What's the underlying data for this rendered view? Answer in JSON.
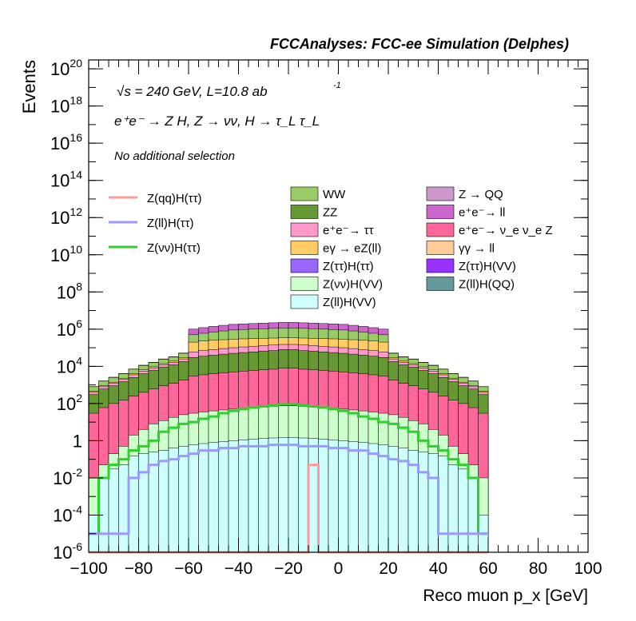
{
  "header": {
    "title": "FCCAnalyses: FCC-ee Simulation (Delphes)"
  },
  "annotations": {
    "energy": "√s = 240 GeV, L=10.8 ab",
    "energy_exponent": "-1",
    "process": "e⁺e⁻ → Z H, Z → νν, H → τ_L τ_L",
    "selection": "No additional selection"
  },
  "chart_data": {
    "type": "histogram",
    "title": "FCCAnalyses: FCC-ee Simulation (Delphes)",
    "xlabel": "Reco muon p_x [GeV]",
    "ylabel": "Events",
    "xlim": [
      -100,
      100
    ],
    "ylim": [
      1e-06,
      3e+20
    ],
    "yscale": "log",
    "bin_width": 4,
    "x_ticks": [
      "−100",
      "−80",
      "−60",
      "−40",
      "−20",
      "0",
      "20",
      "40",
      "60",
      "80",
      "100"
    ],
    "y_ticks": [
      {
        "base": "10",
        "exp": "20",
        "value": 1e+20
      },
      {
        "base": "10",
        "exp": "18",
        "value": 1e+18
      },
      {
        "base": "10",
        "exp": "16",
        "value": 1e+16
      },
      {
        "base": "10",
        "exp": "14",
        "value": 100000000000000.0
      },
      {
        "base": "10",
        "exp": "12",
        "value": 1000000000000.0
      },
      {
        "base": "10",
        "exp": "10",
        "value": 10000000000.0
      },
      {
        "base": "10",
        "exp": "8",
        "value": 100000000.0
      },
      {
        "base": "10",
        "exp": "6",
        "value": 1000000.0
      },
      {
        "base": "10",
        "exp": "4",
        "value": 10000.0
      },
      {
        "base": "10",
        "exp": "2",
        "value": 100.0
      },
      {
        "base": "1",
        "exp": "",
        "value": 1
      },
      {
        "base": "10",
        "exp": "-2",
        "value": 0.01
      },
      {
        "base": "10",
        "exp": "-4",
        "value": 0.0001
      },
      {
        "base": "10",
        "exp": "-6",
        "value": 1e-06
      }
    ],
    "stack_totals": [
      {
        "name": "Z(ll)H(VV)",
        "color": "#ccfffe",
        "values": [
          0.0001,
          0.01,
          0.03,
          0.05,
          0.15,
          0.2,
          0.25,
          0.3,
          0.4,
          0.5,
          0.6,
          0.7,
          0.8,
          0.9,
          1.0,
          1.1,
          1.2,
          1.3,
          1.4,
          1.5,
          1.5,
          1.4,
          1.3,
          1.2,
          1.1,
          1.0,
          0.9,
          0.8,
          0.7,
          0.6,
          0.5,
          0.4,
          0.3,
          0.25,
          0.2,
          0.15,
          0.05,
          0.03,
          0.01,
          0.0001
        ]
      },
      {
        "name": "Z(νν)H(VV)",
        "color": "#ccffcc",
        "values": [
          0.01,
          0.05,
          0.2,
          0.5,
          2,
          4,
          8,
          12,
          18,
          25,
          30,
          35,
          40,
          45,
          50,
          55,
          60,
          65,
          70,
          75,
          75,
          70,
          65,
          60,
          55,
          50,
          45,
          40,
          35,
          30,
          25,
          18,
          12,
          8,
          4,
          2,
          0.5,
          0.2,
          0.05,
          0.01
        ]
      },
      {
        "name": "e⁺e⁻ → ν_e ν_e Z",
        "color": "#ff6699",
        "values": [
          30,
          60,
          100,
          150,
          250,
          400,
          600,
          900,
          1200,
          1800,
          3000,
          3500,
          4000,
          4500,
          5000,
          5500,
          6000,
          6500,
          7000,
          8000,
          8000,
          7000,
          6500,
          6000,
          5500,
          5000,
          4500,
          4000,
          3500,
          3000,
          1800,
          1200,
          900,
          600,
          400,
          250,
          150,
          100,
          60,
          30
        ]
      },
      {
        "name": "ZZ",
        "color": "#669933",
        "values": [
          300,
          600,
          900,
          1500,
          2500,
          4000,
          6000,
          9000,
          12000,
          18000,
          30000,
          35000,
          40000,
          45000,
          50000,
          55000,
          60000,
          65000,
          70000,
          80000,
          80000,
          70000,
          65000,
          60000,
          55000,
          50000,
          45000,
          40000,
          35000,
          30000,
          18000,
          12000,
          9000,
          6000,
          4000,
          2500,
          1500,
          900,
          600,
          300
        ]
      },
      {
        "name": "e⁺e⁻ → ττ",
        "color": "#ff99cc",
        "values": [
          400,
          800,
          1200,
          2000,
          3500,
          5500,
          8000,
          12000,
          16000,
          25000,
          60000,
          70000,
          80000,
          90000,
          100000,
          110000,
          120000,
          130000,
          140000,
          150000,
          150000,
          140000,
          130000,
          120000,
          110000,
          100000,
          90000,
          80000,
          70000,
          60000,
          25000,
          16000,
          12000,
          8000,
          5500,
          3500,
          2000,
          1200,
          800,
          400
        ]
      },
      {
        "name": "eγ → eZ(ll)",
        "color": "#ffcc66",
        "values": [
          450,
          900,
          1400,
          2300,
          4000,
          6500,
          9500,
          14000,
          19000,
          30000,
          200000,
          230000,
          250000,
          270000,
          290000,
          300000,
          310000,
          320000,
          330000,
          340000,
          340000,
          330000,
          320000,
          310000,
          300000,
          290000,
          270000,
          250000,
          230000,
          200000,
          30000,
          19000,
          14000,
          9500,
          6500,
          4000,
          2300,
          1400,
          900,
          450
        ]
      },
      {
        "name": "WW",
        "color": "#99cc66",
        "values": [
          800,
          1600,
          2500,
          4000,
          7000,
          11000,
          16000,
          24000,
          32000,
          50000,
          500000,
          600000,
          700000,
          800000,
          900000,
          950000,
          1000000,
          1050000,
          1100000,
          1150000,
          1150000,
          1100000,
          1050000,
          1000000,
          950000,
          900000,
          800000,
          700000,
          600000,
          500000,
          50000,
          32000,
          24000,
          16000,
          11000,
          7000,
          4000,
          2500,
          1600,
          800
        ]
      },
      {
        "name": "e⁺e⁻ → ll",
        "color": "#cc66cc",
        "values": [
          820,
          1650,
          2600,
          4100,
          7200,
          11500,
          16500,
          25000,
          33000,
          52000,
          1000000,
          1200000,
          1400000,
          1600000,
          1800000,
          1900000,
          2000000,
          2100000,
          2200000,
          2300000,
          2300000,
          2200000,
          2100000,
          2000000,
          1900000,
          1800000,
          1600000,
          1400000,
          1200000,
          1000000,
          52000,
          33000,
          25000,
          16500,
          11500,
          7200,
          4100,
          2600,
          1650,
          820
        ]
      }
    ],
    "overlays": [
      {
        "name": "Z(νν)H(ττ)",
        "color": "#33cc33",
        "values": [
          1e-05,
          0.01,
          0.05,
          0.1,
          0.3,
          0.5,
          1,
          3,
          5,
          8,
          10,
          15,
          20,
          30,
          40,
          50,
          60,
          70,
          80,
          90,
          90,
          80,
          70,
          60,
          50,
          40,
          30,
          20,
          15,
          10,
          8,
          5,
          3,
          1,
          0.5,
          0.3,
          0.1,
          0.05,
          0.01,
          1e-05
        ]
      },
      {
        "name": "Z(ll)H(ττ)",
        "color": "#9999ff",
        "values": [
          1e-05,
          1e-05,
          1e-05,
          1e-05,
          0.01,
          0.02,
          0.05,
          0.08,
          0.1,
          0.15,
          0.2,
          0.3,
          0.3,
          0.4,
          0.4,
          0.5,
          0.5,
          0.5,
          0.6,
          0.6,
          0.6,
          0.5,
          0.5,
          0.5,
          0.4,
          0.4,
          0.3,
          0.3,
          0.2,
          0.15,
          0.1,
          0.08,
          0.05,
          0.02,
          0.01,
          1e-05,
          1e-05,
          1e-05,
          1e-05,
          1e-05
        ]
      },
      {
        "name": "Z(qq)H(ττ)",
        "color": "#ff9999",
        "values": [
          1e-06,
          1e-06,
          1e-06,
          1e-06,
          1e-06,
          1e-06,
          1e-06,
          1e-06,
          1e-06,
          1e-06,
          1e-06,
          1e-06,
          1e-06,
          1e-06,
          1e-06,
          1e-06,
          1e-06,
          1e-06,
          1e-06,
          1e-06,
          1e-06,
          1e-06,
          0.05,
          1e-06,
          1e-06,
          1e-06,
          1e-06,
          1e-06,
          1e-06,
          1e-06,
          1e-06,
          1e-06,
          1e-06,
          1e-06,
          1e-06,
          1e-06,
          1e-06,
          1e-06,
          1e-06,
          1e-06
        ]
      }
    ],
    "legend_lines": [
      {
        "label": "Z(qq)H(ττ)",
        "color": "#ff9999"
      },
      {
        "label": "Z(ll)H(ττ)",
        "color": "#9999ff"
      },
      {
        "label": "Z(νν)H(ττ)",
        "color": "#33cc33"
      }
    ],
    "legend_fill_col1": [
      {
        "label": "WW",
        "color": "#99cc66"
      },
      {
        "label": "ZZ",
        "color": "#669933"
      },
      {
        "label": "e⁺e⁻→ ττ",
        "color": "#ff99cc"
      },
      {
        "label": "eγ → eZ(ll)",
        "color": "#ffcc66"
      },
      {
        "label": "Z(ττ)H(ττ)",
        "color": "#9966ff"
      },
      {
        "label": "Z(νν)H(VV)",
        "color": "#ccffcc"
      },
      {
        "label": "Z(ll)H(VV)",
        "color": "#ccfffe"
      }
    ],
    "legend_fill_col2": [
      {
        "label": "Z → QQ",
        "color": "#cc99cc"
      },
      {
        "label": "e⁺e⁻→ ll",
        "color": "#cc66cc"
      },
      {
        "label": "e⁺e⁻→ ν_e ν_e Z",
        "color": "#ff6699"
      },
      {
        "label": "γγ → ll",
        "color": "#ffcc99"
      },
      {
        "label": "Z(ττ)H(VV)",
        "color": "#9933ff"
      },
      {
        "label": "Z(ll)H(QQ)",
        "color": "#669999"
      }
    ]
  }
}
